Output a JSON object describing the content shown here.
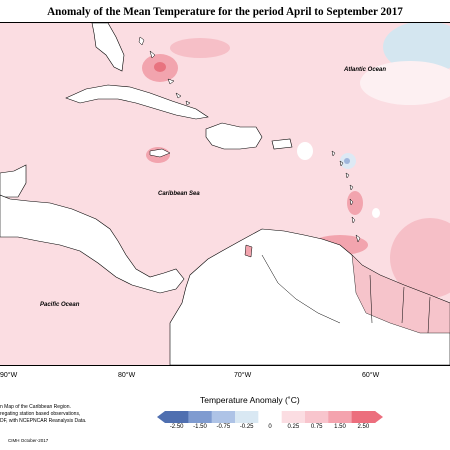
{
  "title": "Anomaly of the Mean Temperature for the period April to September 2017",
  "labels": {
    "atlantic": "Atlantic Ocean",
    "caribbean": "Caribbean Sea",
    "pacific": "Pacific Ocean"
  },
  "longitude_ticks": [
    "90°W",
    "80°W",
    "70°W",
    "60°W"
  ],
  "caption_lines": [
    "n Map of the Caribbean Region.",
    "regating station based observations,",
    "DF, with NCEPNCAR Reanalysis Data."
  ],
  "credit": "CIMH October-2017",
  "legend": {
    "title": "Temperature Anomaly (˚C)",
    "ticks": [
      "-2.50",
      "-1.50",
      "-0.75",
      "-0.25",
      "0",
      "0.25",
      "0.75",
      "1.50",
      "2.50"
    ],
    "colors": [
      "#4f6fb0",
      "#7f9bd0",
      "#aec3e6",
      "#d9e8f3",
      "#ffffff",
      "#fbdde2",
      "#f8c5cd",
      "#f4a3ae",
      "#ec6e7d"
    ]
  },
  "colors": {
    "base_anomaly": "#fbdde2",
    "warm_patch": "#f2a4ae",
    "hot_spot": "#e8737f",
    "cool_patch": "#d4e6f0",
    "land": "#ffffff",
    "coast": "#000000"
  }
}
